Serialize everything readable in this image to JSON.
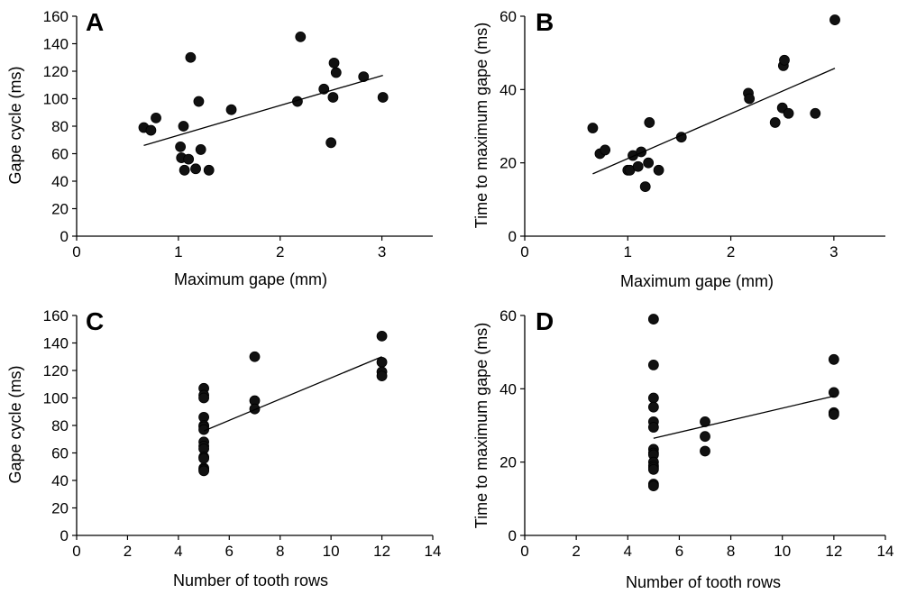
{
  "chart_data": [
    {
      "panel": "A",
      "type": "scatter",
      "xlabel": "Maximum gape (mm)",
      "ylabel": "Gape cycle (ms)",
      "xlim": [
        0,
        3.5
      ],
      "ylim": [
        0,
        160
      ],
      "xticks": [
        0,
        1,
        2,
        3
      ],
      "yticks": [
        0,
        20,
        40,
        60,
        80,
        100,
        120,
        140,
        160
      ],
      "x": [
        0.66,
        0.73,
        0.78,
        1.02,
        1.03,
        1.05,
        1.06,
        1.1,
        1.12,
        1.17,
        1.2,
        1.22,
        1.3,
        1.52,
        2.17,
        2.2,
        2.43,
        2.5,
        2.52,
        2.53,
        2.55,
        2.82,
        3.01
      ],
      "y": [
        79,
        77,
        86,
        65,
        57,
        80,
        48,
        56,
        130,
        49,
        98,
        63,
        48,
        92,
        98,
        145,
        107,
        68,
        101,
        126,
        119,
        116,
        101
      ],
      "trendline": {
        "x": [
          0.66,
          3.01
        ],
        "y": [
          66,
          117
        ]
      },
      "grid": false,
      "legend": "none"
    },
    {
      "panel": "B",
      "type": "scatter",
      "xlabel": "Maximum gape (mm)",
      "ylabel": "Time to maximum gape (ms)",
      "xlim": [
        0,
        3.5
      ],
      "ylim": [
        0,
        60
      ],
      "xticks": [
        0,
        1,
        2,
        3
      ],
      "yticks": [
        0,
        20,
        40,
        60
      ],
      "x": [
        0.66,
        0.73,
        0.78,
        1.0,
        1.02,
        1.05,
        1.1,
        1.13,
        1.17,
        1.2,
        1.21,
        1.3,
        1.52,
        2.17,
        2.18,
        2.43,
        2.5,
        2.51,
        2.52,
        2.56,
        2.82,
        3.01
      ],
      "y": [
        29.5,
        22.5,
        23.5,
        18,
        18,
        22,
        19,
        23,
        13.5,
        20,
        31,
        18,
        27,
        39,
        37.5,
        31,
        35,
        46.5,
        48,
        33.5,
        33.5,
        59
      ],
      "trendline": {
        "x": [
          0.66,
          3.01
        ],
        "y": [
          17,
          45.8
        ]
      },
      "grid": false,
      "legend": "none"
    },
    {
      "panel": "C",
      "type": "scatter",
      "xlabel": "Number of tooth rows",
      "ylabel": "Gape cycle (ms)",
      "xlim": [
        0,
        14
      ],
      "ylim": [
        0,
        160
      ],
      "xticks": [
        0,
        2,
        4,
        6,
        8,
        10,
        12,
        14
      ],
      "yticks": [
        0,
        20,
        40,
        60,
        80,
        100,
        120,
        140,
        160
      ],
      "x": [
        5,
        5,
        5,
        5,
        5,
        5,
        5,
        5,
        5,
        5,
        5,
        5,
        5,
        5,
        5,
        7,
        7,
        7,
        12,
        12,
        12,
        12
      ],
      "y": [
        107,
        102,
        100,
        86,
        80,
        79,
        77,
        68,
        65,
        63,
        57,
        56,
        49,
        48,
        47,
        130,
        98,
        92,
        145,
        126,
        119,
        116
      ],
      "trendline": {
        "x": [
          5,
          12
        ],
        "y": [
          76,
          130
        ]
      },
      "grid": false,
      "legend": "none"
    },
    {
      "panel": "D",
      "type": "scatter",
      "xlabel": "Number of tooth rows",
      "ylabel": "Time to maximum gape (ms)",
      "xlim": [
        0,
        14
      ],
      "ylim": [
        0,
        60
      ],
      "xticks": [
        0,
        2,
        4,
        6,
        8,
        10,
        12,
        14
      ],
      "yticks": [
        0,
        20,
        40,
        60
      ],
      "x": [
        5,
        5,
        5,
        5,
        5,
        5,
        5,
        5,
        5,
        5,
        5,
        5,
        5,
        5,
        5,
        7,
        7,
        7,
        12,
        12,
        12,
        12
      ],
      "y": [
        59,
        46.5,
        37.5,
        35,
        31,
        29.5,
        23.5,
        22.5,
        22,
        20,
        19,
        18.5,
        18,
        14,
        13.5,
        31,
        27,
        23,
        48,
        39,
        33.5,
        33
      ],
      "trendline": {
        "x": [
          5,
          12
        ],
        "y": [
          26.5,
          38
        ]
      },
      "grid": false,
      "legend": "none"
    }
  ]
}
